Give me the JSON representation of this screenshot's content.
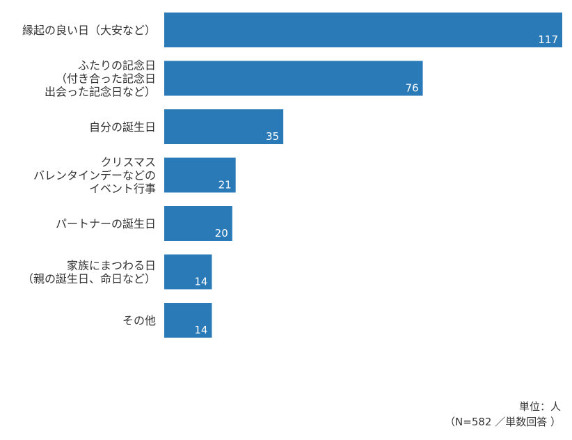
{
  "chart_data": {
    "type": "bar",
    "orientation": "horizontal",
    "categories": [
      [
        "縁起の良い日（大安など）"
      ],
      [
        "ふたりの記念日",
        "（付き合った記念日",
        "出会った記念日など）"
      ],
      [
        "自分の誕生日"
      ],
      [
        "クリスマス",
        "バレンタインデーなどの",
        "イベント行事"
      ],
      [
        "パートナーの誕生日"
      ],
      [
        "家族にまつわる日",
        "（親の誕生日、命日など）"
      ],
      [
        "その他"
      ]
    ],
    "values": [
      117,
      76,
      35,
      21,
      20,
      14,
      14
    ],
    "xlim": [
      0,
      117
    ],
    "grid": false,
    "bar_color": "#2a7ab8",
    "label_color": "#ffffff"
  },
  "footnote": {
    "unit": "単位：人",
    "sample": "（N=582 ／単数回答 ）"
  }
}
